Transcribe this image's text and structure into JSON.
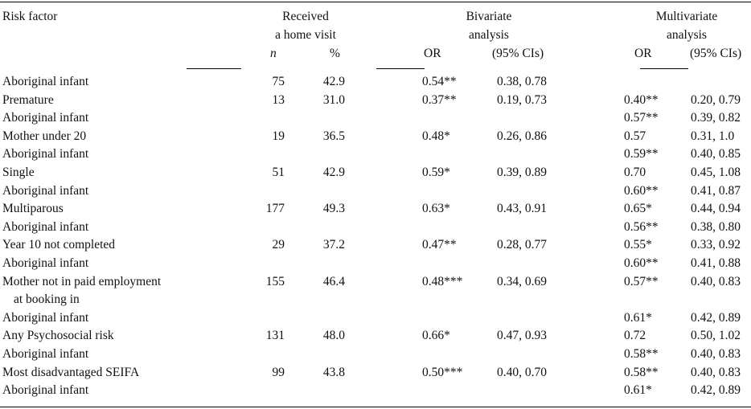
{
  "header": {
    "risk_factor": "Risk factor",
    "received_line1": "Received",
    "received_line2": "a home visit",
    "n": "n",
    "pct": "%",
    "bivariate_line1": "Bivariate",
    "bivariate_line2": "analysis",
    "multivariate_line1": "Multivariate",
    "multivariate_line2": "analysis",
    "or_biv": "OR",
    "ci_biv": "(95% CIs)",
    "or_multi": "OR",
    "ci_multi": "(95% CIs)"
  },
  "rows": [
    {
      "factor": "Aboriginal infant",
      "n": "75",
      "pct": "42.9",
      "or_b": "0.54**",
      "ci_b": "0.38, 0.78",
      "or_m": "",
      "ci_m": ""
    },
    {
      "factor": "Premature",
      "n": "13",
      "pct": "31.0",
      "or_b": "0.37**",
      "ci_b": "0.19, 0.73",
      "or_m": "0.40**",
      "ci_m": "0.20, 0.79"
    },
    {
      "factor": "Aboriginal infant",
      "n": "",
      "pct": "",
      "or_b": "",
      "ci_b": "",
      "or_m": "0.57**",
      "ci_m": "0.39, 0.82"
    },
    {
      "factor": "Mother under 20",
      "n": "19",
      "pct": "36.5",
      "or_b": "0.48*",
      "ci_b": "0.26, 0.86",
      "or_m": "0.57",
      "ci_m": "0.31, 1.0"
    },
    {
      "factor": "Aboriginal infant",
      "n": "",
      "pct": "",
      "or_b": "",
      "ci_b": "",
      "or_m": "0.59**",
      "ci_m": "0.40, 0.85"
    },
    {
      "factor": "Single",
      "n": "51",
      "pct": "42.9",
      "or_b": "0.59*",
      "ci_b": "0.39, 0.89",
      "or_m": "0.70",
      "ci_m": "0.45, 1.08"
    },
    {
      "factor": "Aboriginal infant",
      "n": "",
      "pct": "",
      "or_b": "",
      "ci_b": "",
      "or_m": "0.60**",
      "ci_m": "0.41, 0.87"
    },
    {
      "factor": "Multiparous",
      "n": "177",
      "pct": "49.3",
      "or_b": "0.63*",
      "ci_b": "0.43, 0.91",
      "or_m": "0.65*",
      "ci_m": "0.44, 0.94"
    },
    {
      "factor": "Aboriginal infant",
      "n": "",
      "pct": "",
      "or_b": "",
      "ci_b": "",
      "or_m": "0.56**",
      "ci_m": "0.38, 0.80"
    },
    {
      "factor": "Year 10 not completed",
      "n": "29",
      "pct": "37.2",
      "or_b": "0.47**",
      "ci_b": "0.28, 0.77",
      "or_m": "0.55*",
      "ci_m": "0.33, 0.92"
    },
    {
      "factor": "Aboriginal infant",
      "n": "",
      "pct": "",
      "or_b": "",
      "ci_b": "",
      "or_m": "0.60**",
      "ci_m": "0.41, 0.88"
    },
    {
      "factor": "Mother not in paid employment",
      "n": "155",
      "pct": "46.4",
      "or_b": "0.48***",
      "ci_b": "0.34, 0.69",
      "or_m": "0.57**",
      "ci_m": "0.40, 0.83"
    },
    {
      "factor": "at booking in",
      "n": "",
      "pct": "",
      "or_b": "",
      "ci_b": "",
      "or_m": "",
      "ci_m": "",
      "indent": true
    },
    {
      "factor": "Aboriginal infant",
      "n": "",
      "pct": "",
      "or_b": "",
      "ci_b": "",
      "or_m": "0.61*",
      "ci_m": "0.42, 0.89"
    },
    {
      "factor": "Any Psychosocial risk",
      "n": "131",
      "pct": "48.0",
      "or_b": "0.66*",
      "ci_b": "0.47, 0.93",
      "or_m": "0.72",
      "ci_m": "0.50, 1.02"
    },
    {
      "factor": "Aboriginal infant",
      "n": "",
      "pct": "",
      "or_b": "",
      "ci_b": "",
      "or_m": "0.58**",
      "ci_m": "0.40, 0.83"
    },
    {
      "factor": "Most disadvantaged SEIFA",
      "n": "99",
      "pct": "43.8",
      "or_b": "0.50***",
      "ci_b": "0.40, 0.70",
      "or_m": "0.58**",
      "ci_m": "0.40, 0.83"
    },
    {
      "factor": "Aboriginal infant",
      "n": "",
      "pct": "",
      "or_b": "",
      "ci_b": "",
      "or_m": "0.61*",
      "ci_m": "0.42, 0.89"
    }
  ]
}
